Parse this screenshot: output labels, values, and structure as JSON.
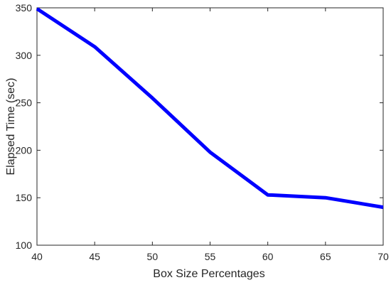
{
  "chart_data": {
    "type": "line",
    "title": "",
    "xlabel": "Box Size Percentages",
    "ylabel": "Elapsed Time (sec)",
    "xlim": [
      40,
      70
    ],
    "ylim": [
      100,
      350
    ],
    "xticks": [
      40,
      45,
      50,
      55,
      60,
      65,
      70
    ],
    "yticks": [
      100,
      150,
      200,
      250,
      300,
      350
    ],
    "grid": false,
    "series": [
      {
        "color": "#0000ff",
        "x": [
          40,
          45,
          50,
          55,
          60,
          65,
          70
        ],
        "y": [
          349,
          309,
          255,
          198,
          153,
          150,
          140
        ]
      }
    ]
  }
}
